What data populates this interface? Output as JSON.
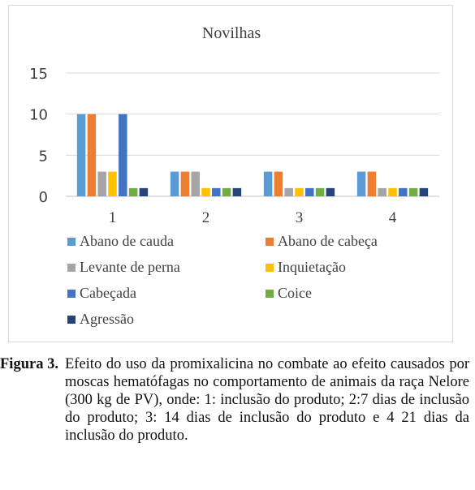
{
  "chart_data": {
    "type": "bar",
    "title": "Novilhas",
    "categories": [
      "1",
      "2",
      "3",
      "4"
    ],
    "y_ticks": [
      "0",
      "5",
      "10",
      "15"
    ],
    "ylim": [
      0,
      15
    ],
    "grid": true,
    "legend_position": "bottom",
    "series": [
      {
        "name": "Abano de cauda",
        "color": "#5b9bd5",
        "values": [
          10,
          3,
          3,
          3
        ]
      },
      {
        "name": "Abano de cabeça",
        "color": "#ed7d31",
        "values": [
          10,
          3,
          3,
          3
        ]
      },
      {
        "name": "Levante de perna",
        "color": "#a5a5a5",
        "values": [
          3,
          3,
          1,
          1
        ]
      },
      {
        "name": "Inquietação",
        "color": "#ffc000",
        "values": [
          3,
          1,
          1,
          1
        ]
      },
      {
        "name": "Cabeçada",
        "color": "#4472c4",
        "values": [
          10,
          1,
          1,
          1
        ]
      },
      {
        "name": "Coice",
        "color": "#70ad47",
        "values": [
          1,
          1,
          1,
          1
        ]
      },
      {
        "name": "Agressão",
        "color": "#264478",
        "values": [
          1,
          1,
          1,
          1
        ]
      }
    ]
  },
  "caption": {
    "label": "Figura 3.",
    "text": "Efeito do uso da promixalicina no combate ao efeito causados por moscas hematófagas no comportamento de animais da raça Nelore (300 kg de PV), onde: 1: inclusão do produto; 2:7 dias de inclusão do produto; 3: 14 dias de inclusão do produto e 4 21 dias da inclusão do produto."
  }
}
